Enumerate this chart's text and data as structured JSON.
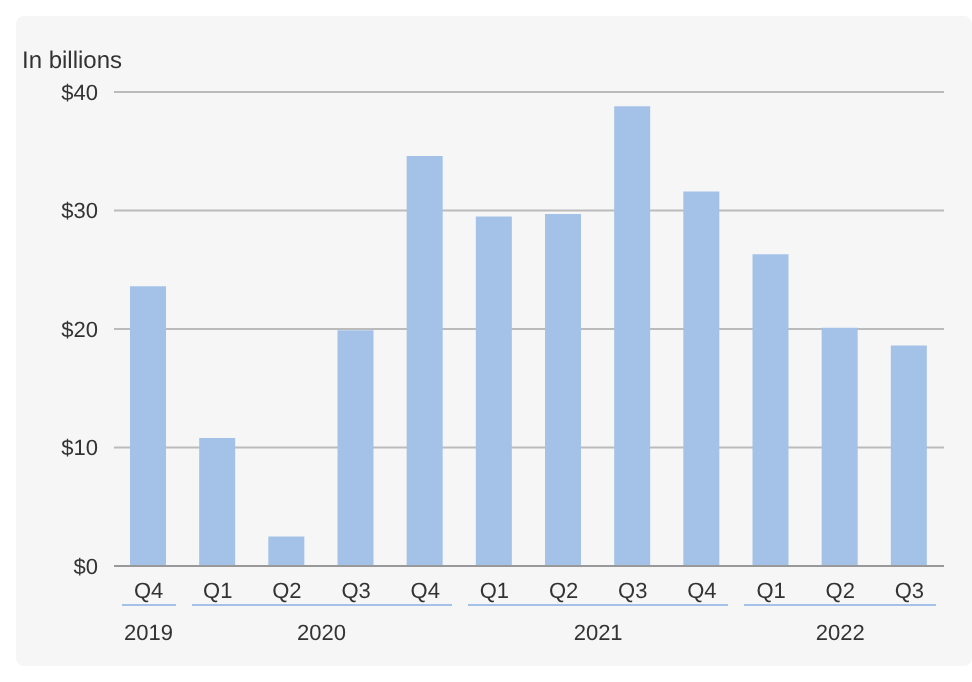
{
  "chart_data": {
    "type": "bar",
    "ylabel": "In billions",
    "categories": [
      "Q4",
      "Q1",
      "Q2",
      "Q3",
      "Q4",
      "Q1",
      "Q2",
      "Q3",
      "Q4",
      "Q1",
      "Q2",
      "Q3"
    ],
    "values": [
      23.6,
      10.8,
      2.5,
      19.9,
      34.6,
      29.5,
      29.7,
      38.8,
      31.6,
      26.3,
      20.1,
      18.6
    ],
    "color": "#a4c2e8",
    "ylim": [
      0,
      40
    ],
    "yticks": [
      {
        "value": 0,
        "label": "$0"
      },
      {
        "value": 10,
        "label": "$10"
      },
      {
        "value": 20,
        "label": "$20"
      },
      {
        "value": 30,
        "label": "$30"
      },
      {
        "value": 40,
        "label": "$40"
      }
    ],
    "grid": "y",
    "annotations": [
      "2019",
      "2020",
      "2021",
      "2022"
    ]
  }
}
